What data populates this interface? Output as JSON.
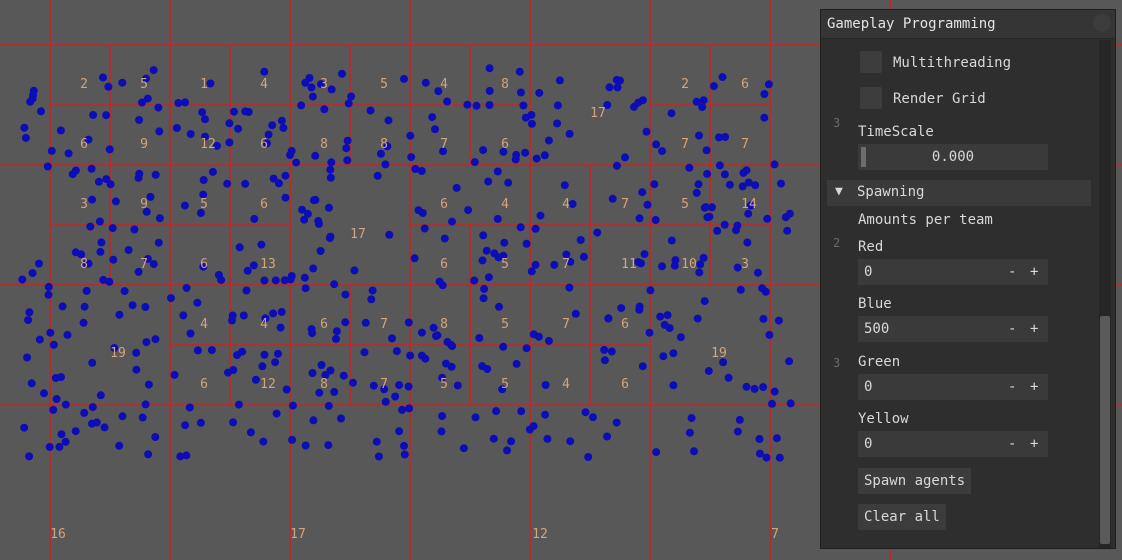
{
  "grid": {
    "line_color": "#d91b1b",
    "label_color": "#d2a57e",
    "agent_color": "#0d0db8",
    "level0_labels": [
      "16",
      "17",
      "12",
      "7"
    ],
    "level1_labels": [
      "19",
      "19"
    ],
    "level2_labels": [
      "17"
    ],
    "level3_labels": [
      "2",
      "5",
      "1",
      "4",
      "3",
      "5",
      "4",
      "8",
      "2",
      "6",
      "6",
      "9",
      "12",
      "6",
      "8",
      "8",
      "7",
      "6",
      "7",
      "7",
      "3",
      "9",
      "5",
      "6",
      "6",
      "4",
      "4",
      "7",
      "5",
      "14",
      "8",
      "7",
      "6",
      "13",
      "6",
      "5",
      "7",
      "11",
      "10",
      "3",
      "4",
      "4",
      "6",
      "7",
      "8",
      "5",
      "7",
      "6",
      "6",
      "12",
      "8",
      "7",
      "5",
      "5",
      "4",
      "6"
    ]
  },
  "panel": {
    "title": "Gameplay Programming",
    "multithreading_label": "Multithreading",
    "render_grid_label": "Render Grid",
    "timescale_label": "TimeScale",
    "timescale_value": "0.000",
    "spawning_header": "Spawning",
    "amounts_label": "Amounts per team",
    "teams": [
      {
        "name": "Red",
        "value": "0"
      },
      {
        "name": "Blue",
        "value": "500"
      },
      {
        "name": "Green",
        "value": "0"
      },
      {
        "name": "Yellow",
        "value": "0"
      }
    ],
    "minus": "-",
    "plus": "+",
    "spawn_button": "Spawn agents",
    "clear_button": "Clear all",
    "side_numbers": [
      "3",
      "2",
      "3"
    ]
  }
}
